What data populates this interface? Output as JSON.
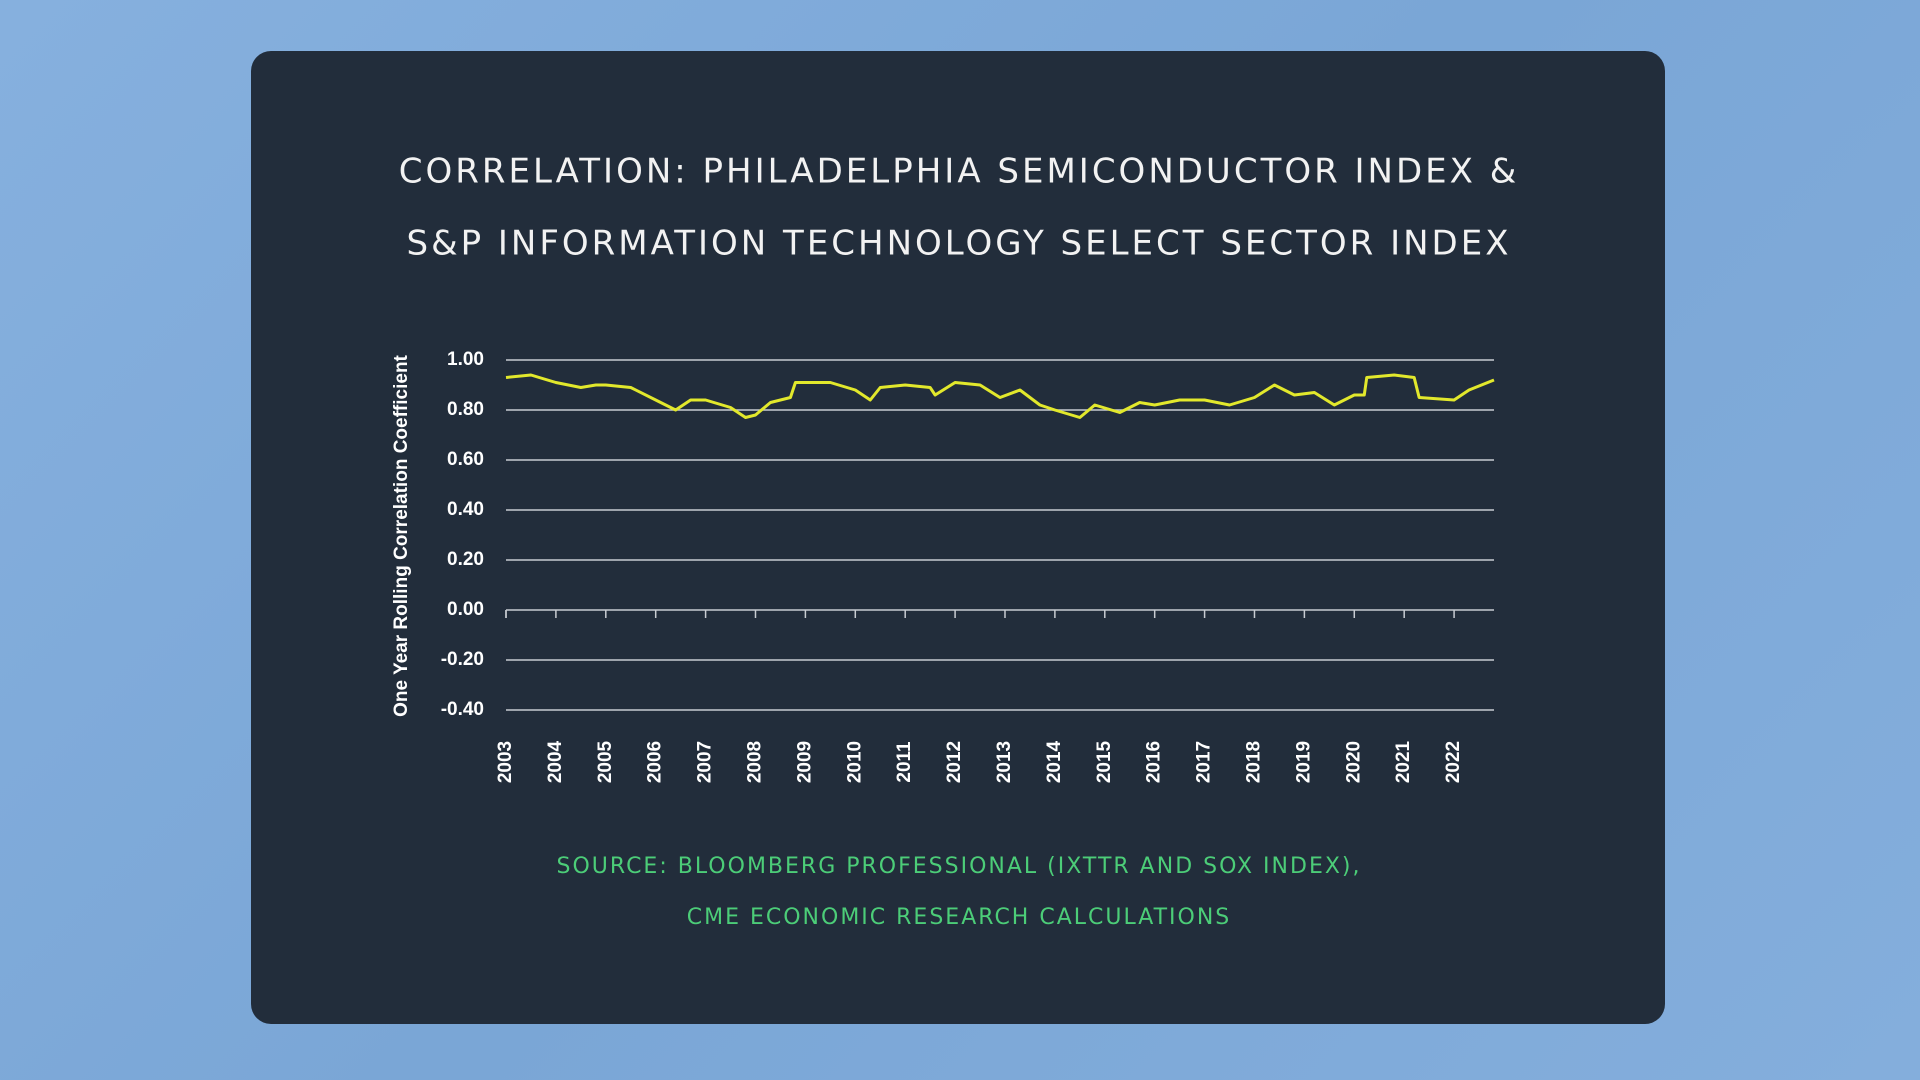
{
  "chart_data": {
    "type": "line",
    "title": [
      "CORRELATION: PHILADELPHIA SEMICONDUCTOR INDEX &",
      "S&P INFORMATION TECHNOLOGY SELECT SECTOR INDEX"
    ],
    "ylabel": "One Year Rolling Correlation Coefficient",
    "source": [
      "SOURCE: BLOOMBERG PROFESSIONAL (IXTTR AND SOX INDEX),",
      "CME ECONOMIC RESEARCH CALCULATIONS"
    ],
    "x": [
      2003.0,
      2003.5,
      2004.0,
      2004.5,
      2004.8,
      2005.0,
      2005.5,
      2006.0,
      2006.4,
      2006.7,
      2007.0,
      2007.5,
      2007.8,
      2008.0,
      2008.3,
      2008.7,
      2008.8,
      2009.0,
      2009.5,
      2010.0,
      2010.3,
      2010.5,
      2011.0,
      2011.5,
      2011.6,
      2012.0,
      2012.5,
      2012.9,
      2013.3,
      2013.7,
      2014.0,
      2014.5,
      2014.8,
      2015.3,
      2015.7,
      2016.0,
      2016.5,
      2017.0,
      2017.5,
      2018.0,
      2018.4,
      2018.8,
      2019.2,
      2019.6,
      2020.0,
      2020.2,
      2020.25,
      2020.8,
      2021.2,
      2021.3,
      2022.0,
      2022.3,
      2022.8
    ],
    "series": [
      {
        "color": "#e2e82c",
        "values": [
          0.93,
          0.94,
          0.91,
          0.89,
          0.9,
          0.9,
          0.89,
          0.84,
          0.8,
          0.84,
          0.84,
          0.81,
          0.77,
          0.78,
          0.83,
          0.85,
          0.91,
          0.91,
          0.91,
          0.88,
          0.84,
          0.89,
          0.9,
          0.89,
          0.86,
          0.91,
          0.9,
          0.85,
          0.88,
          0.82,
          0.8,
          0.77,
          0.82,
          0.79,
          0.83,
          0.82,
          0.84,
          0.84,
          0.82,
          0.85,
          0.9,
          0.86,
          0.87,
          0.82,
          0.86,
          0.86,
          0.93,
          0.94,
          0.93,
          0.85,
          0.84,
          0.88,
          0.92
        ]
      }
    ],
    "xlim": [
      2003,
      2022.8
    ],
    "xticks": [
      2003,
      2004,
      2005,
      2006,
      2007,
      2008,
      2009,
      2010,
      2011,
      2012,
      2013,
      2014,
      2015,
      2016,
      2017,
      2018,
      2019,
      2020,
      2021,
      2022
    ],
    "ylim": [
      -0.4,
      1.0
    ],
    "yticks": [
      {
        "value": -0.4,
        "label": "-0.40"
      },
      {
        "value": -0.2,
        "label": "-0.20"
      },
      {
        "value": 0,
        "label": "0.00"
      },
      {
        "value": 0.2,
        "label": "0.20"
      },
      {
        "value": 0.4,
        "label": "0.40"
      },
      {
        "value": 0.6,
        "label": "0.60"
      },
      {
        "value": 0.8,
        "label": "0.80"
      },
      {
        "value": 1.0,
        "label": "1.00"
      }
    ],
    "grid": true
  }
}
